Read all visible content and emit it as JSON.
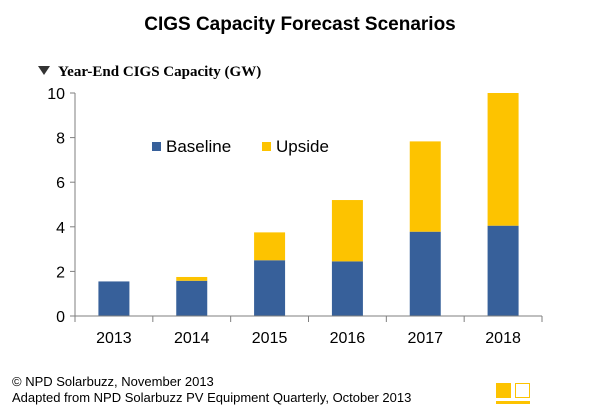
{
  "header": {
    "title": "CIGS Capacity Forecast Scenarios"
  },
  "axis": {
    "ylabel": "Year-End CIGS Capacity (GW)"
  },
  "footer": {
    "copyright": "© NPD Solarbuzz, November 2013",
    "source": "Adapted from NPD Solarbuzz PV Equipment Quarterly, October 2013"
  },
  "colors": {
    "baseline": "#37609a",
    "upside": "#fdc300",
    "axis": "#7f7f7f"
  },
  "chart_data": {
    "type": "bar",
    "stacked": true,
    "title": "CIGS Capacity Forecast Scenarios",
    "xlabel": "",
    "ylabel": "Year-End CIGS Capacity (GW)",
    "categories": [
      "2013",
      "2014",
      "2015",
      "2016",
      "2017",
      "2018"
    ],
    "series": [
      {
        "name": "Baseline",
        "values": [
          1.55,
          1.58,
          2.5,
          2.45,
          3.78,
          4.05
        ]
      },
      {
        "name": "Upside",
        "values": [
          0,
          0.17,
          1.25,
          2.75,
          4.05,
          5.95
        ]
      }
    ],
    "ylim": [
      0,
      10
    ],
    "yticks": [
      0,
      2,
      4,
      6,
      8,
      10
    ],
    "grid": false,
    "legend": "top-center"
  }
}
